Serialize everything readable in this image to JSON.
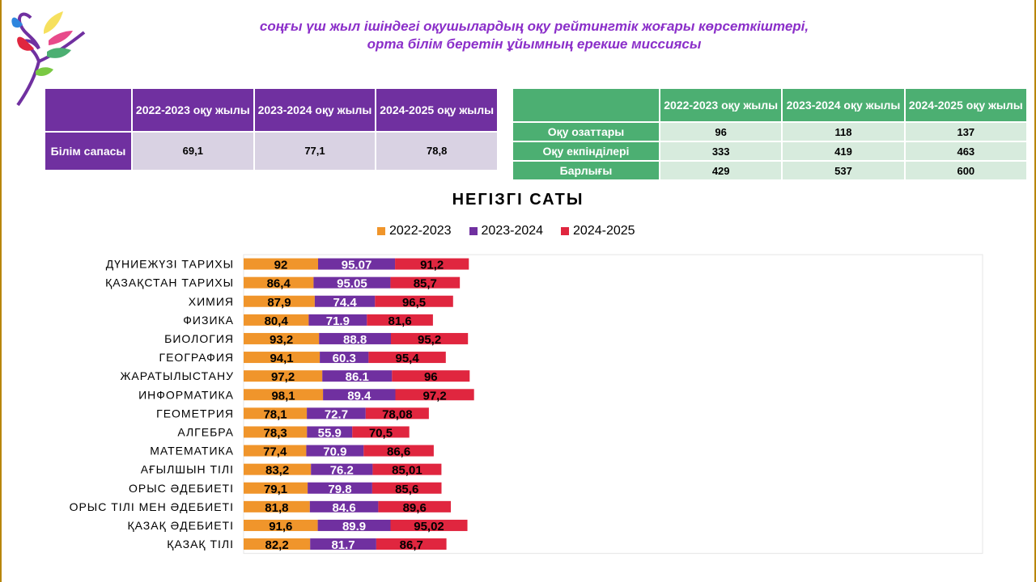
{
  "header": {
    "title_line1": "соңғы үш жыл ішіндегі оқушылардың оқу рейтингтік жоғары көрсеткіштері,",
    "title_line2": "орта білім беретін ұйымның ерекше миссиясы"
  },
  "quality_table": {
    "headers": [
      "2022-2023 оқу жылы",
      "2023-2024 оқу жылы",
      "2024-2025 оқу жылы"
    ],
    "row_label": "Білім сапасы",
    "values": [
      "69,1",
      "77,1",
      "78,8"
    ]
  },
  "students_table": {
    "headers": [
      "2022-2023 оқу жылы",
      "2023-2024 оқу жылы",
      "2024-2025 оқу жылы"
    ],
    "rows": [
      {
        "label": "Оқу озаттары",
        "values": [
          "96",
          "118",
          "137"
        ]
      },
      {
        "label": "Оқу екпінділері",
        "values": [
          "333",
          "419",
          "463"
        ]
      },
      {
        "label": "Барлығы",
        "values": [
          "429",
          "537",
          "600"
        ]
      }
    ]
  },
  "colors": {
    "purple_header": "#7030a0",
    "green_header": "#4caf72",
    "series_2022": "#f0952b",
    "series_2023": "#7030a0",
    "series_2024": "#e0263f"
  },
  "chart_data": {
    "type": "bar",
    "orientation": "horizontal",
    "stacked": true,
    "title": "НЕГІЗГІ САТЫ",
    "legend_position": "top",
    "grid": false,
    "categories": [
      "ДҮНИЕЖҮЗІ ТАРИХЫ",
      "ҚАЗАҚСТАН ТАРИХЫ",
      "ХИМИЯ",
      "ФИЗИКА",
      "БИОЛОГИЯ",
      "ГЕОГРАФИЯ",
      "ЖАРАТЫЛЫСТАНУ",
      "ИНФОРМАТИКА",
      "ГЕОМЕТРИЯ",
      "АЛГЕБРА",
      "МАТЕМАТИКА",
      "АҒЫЛШЫН ТІЛІ",
      "ОРЫС ӘДЕБИЕТІ",
      "ОРЫС ТІЛІ МЕН ӘДЕБИЕТІ",
      "ҚАЗАҚ ӘДЕБИЕТІ",
      "ҚАЗАҚ ТІЛІ"
    ],
    "series": [
      {
        "name": "2022-2023",
        "values": [
          92,
          86.4,
          87.9,
          80.4,
          93.2,
          94.1,
          97.2,
          98.1,
          78.1,
          78.3,
          77.4,
          83.2,
          79.1,
          81.8,
          91.6,
          82.2
        ],
        "labels": [
          "92",
          "86,4",
          "87,9",
          "80,4",
          "93,2",
          "94,1",
          "97,2",
          "98,1",
          "78,1",
          "78,3",
          "77,4",
          "83,2",
          "79,1",
          "81,8",
          "91,6",
          "82,2"
        ]
      },
      {
        "name": "2023-2024",
        "values": [
          95.07,
          95.05,
          74.4,
          71.9,
          88.8,
          60.3,
          86.1,
          89.4,
          72.7,
          55.9,
          70.9,
          76.2,
          79.8,
          84.6,
          89.9,
          81.7
        ],
        "labels": [
          "95.07",
          "95.05",
          "74.4",
          "71.9",
          "88.8",
          "60.3",
          "86.1",
          "89.4",
          "72.7",
          "55.9",
          "70.9",
          "76.2",
          "79.8",
          "84.6",
          "89.9",
          "81.7"
        ]
      },
      {
        "name": "2024-2025",
        "values": [
          91.2,
          85.7,
          96.5,
          81.6,
          95.2,
          95.4,
          96,
          97.2,
          78.08,
          70.5,
          86.6,
          85.01,
          85.6,
          89.6,
          95.02,
          86.7
        ],
        "labels": [
          "91,2",
          "85,7",
          "96,5",
          "81,6",
          "95,2",
          "95,4",
          "96",
          "97,2",
          "78,08",
          "70,5",
          "86,6",
          "85,01",
          "85,6",
          "89,6",
          "95,02",
          "86,7"
        ]
      }
    ],
    "xlim": [
      0,
      300
    ]
  }
}
